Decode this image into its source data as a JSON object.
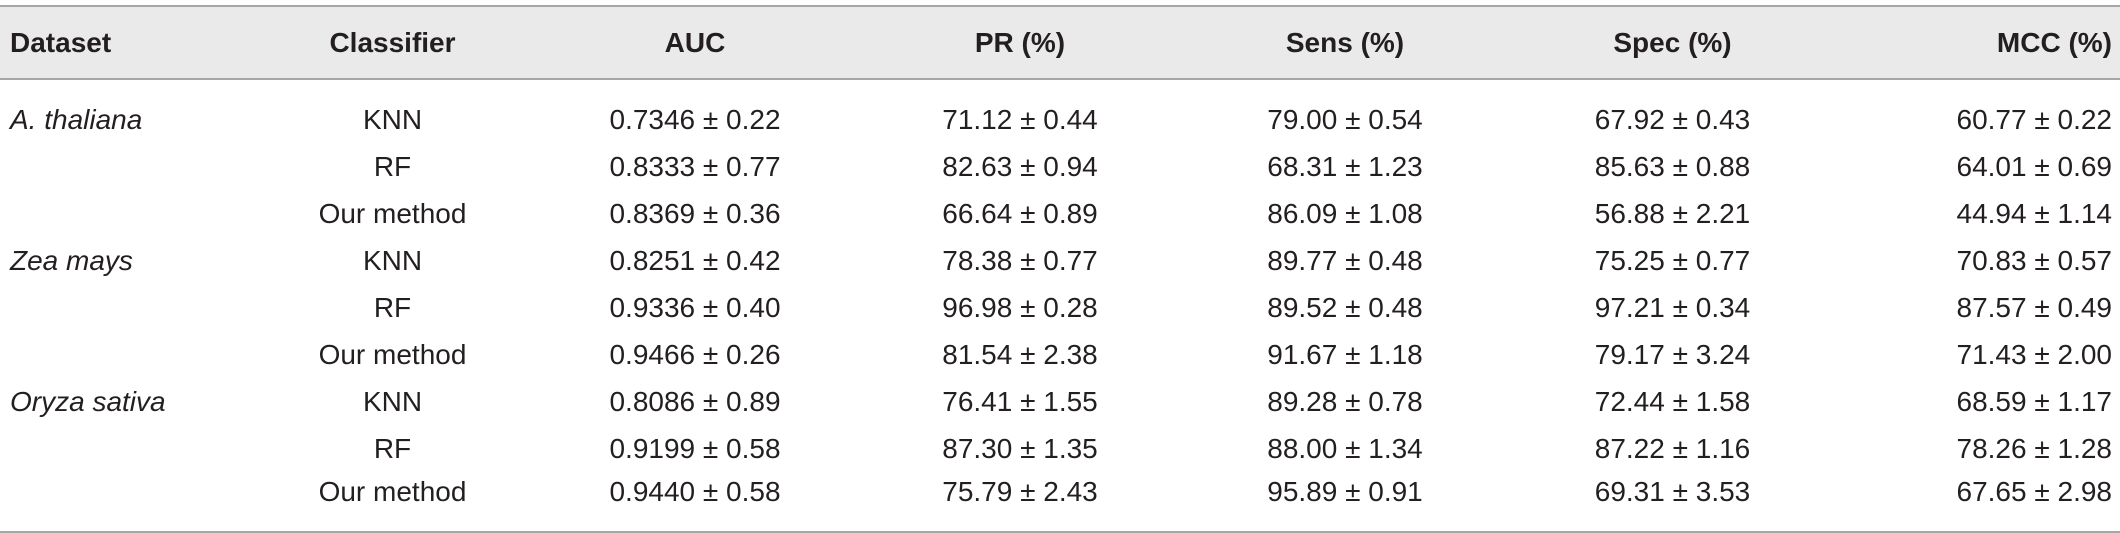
{
  "table": {
    "headers": [
      "Dataset",
      "Classifier",
      "AUC",
      "PR (%)",
      "Sens (%)",
      "Spec (%)",
      "MCC (%)"
    ],
    "rows": [
      {
        "dataset": "A. thaliana",
        "classifier": "KNN",
        "auc": "0.7346 ± 0.22",
        "pr": "71.12 ± 0.44",
        "sens": "79.00 ± 0.54",
        "spec": "67.92 ± 0.43",
        "mcc": "60.77 ± 0.22"
      },
      {
        "dataset": "",
        "classifier": "RF",
        "auc": "0.8333 ± 0.77",
        "pr": "82.63 ± 0.94",
        "sens": "68.31 ± 1.23",
        "spec": "85.63 ± 0.88",
        "mcc": "64.01 ± 0.69"
      },
      {
        "dataset": "",
        "classifier": "Our method",
        "auc": "0.8369 ± 0.36",
        "pr": "66.64 ± 0.89",
        "sens": "86.09 ± 1.08",
        "spec": "56.88 ± 2.21",
        "mcc": "44.94 ± 1.14"
      },
      {
        "dataset": "Zea mays",
        "classifier": "KNN",
        "auc": "0.8251 ± 0.42",
        "pr": "78.38 ± 0.77",
        "sens": "89.77 ± 0.48",
        "spec": "75.25 ± 0.77",
        "mcc": "70.83 ± 0.57"
      },
      {
        "dataset": "",
        "classifier": "RF",
        "auc": "0.9336 ± 0.40",
        "pr": "96.98 ± 0.28",
        "sens": "89.52 ± 0.48",
        "spec": "97.21 ± 0.34",
        "mcc": "87.57 ± 0.49"
      },
      {
        "dataset": "",
        "classifier": "Our method",
        "auc": "0.9466 ± 0.26",
        "pr": "81.54 ± 2.38",
        "sens": "91.67 ± 1.18",
        "spec": "79.17 ± 3.24",
        "mcc": "71.43 ± 2.00"
      },
      {
        "dataset": "Oryza sativa",
        "classifier": "KNN",
        "auc": "0.8086 ± 0.89",
        "pr": "76.41 ± 1.55",
        "sens": "89.28 ± 0.78",
        "spec": "72.44 ± 1.58",
        "mcc": "68.59 ± 1.17"
      },
      {
        "dataset": "",
        "classifier": "RF",
        "auc": "0.9199 ± 0.58",
        "pr": "87.30 ± 1.35",
        "sens": "88.00 ± 1.34",
        "spec": "87.22 ± 1.16",
        "mcc": "78.26 ± 1.28"
      },
      {
        "dataset": "",
        "classifier": "Our method",
        "auc": "0.9440 ± 0.58",
        "pr": "75.79 ± 2.43",
        "sens": "95.89 ± 0.91",
        "spec": "69.31 ± 3.53",
        "mcc": "67.65 ± 2.98"
      }
    ]
  },
  "colors": {
    "header_background": "#eaeaeb",
    "rule": "#a6a6a6",
    "text": "#231f20"
  }
}
